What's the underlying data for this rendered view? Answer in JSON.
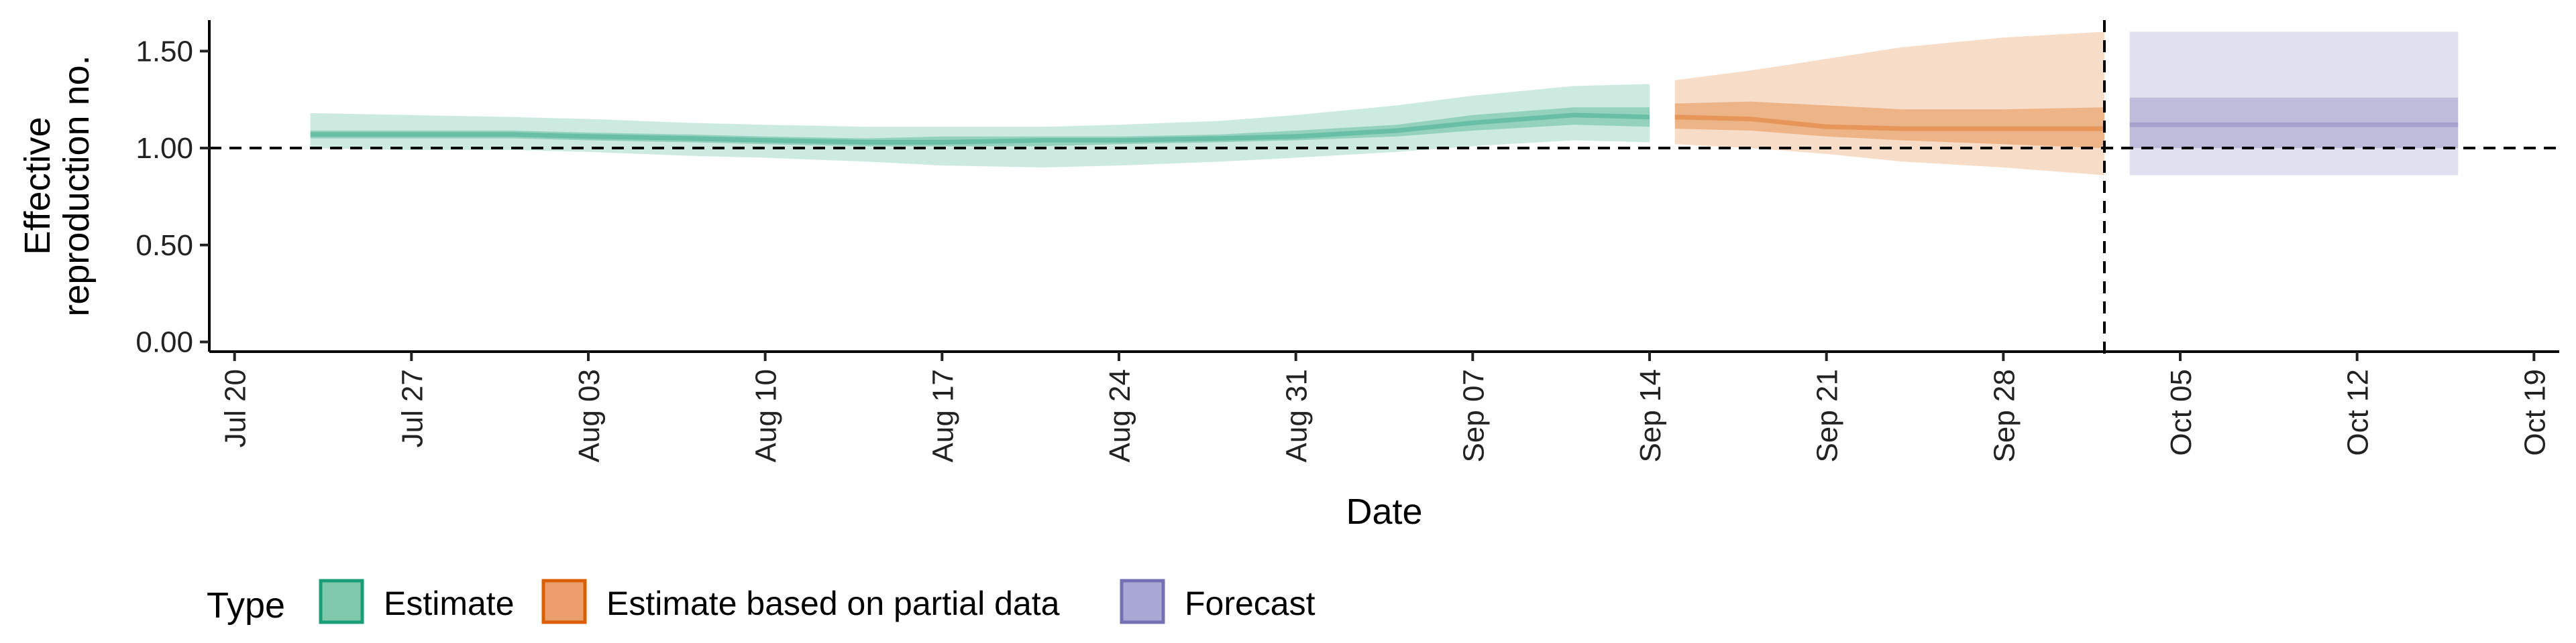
{
  "chart_data": {
    "type": "area",
    "title": "",
    "xlabel": "Date",
    "ylabel_lines": [
      "Effective",
      "reproduction no."
    ],
    "x_start": "2020-07-19",
    "xlim": [
      "2020-07-19",
      "2020-10-20"
    ],
    "ylim": [
      -0.05,
      1.66
    ],
    "x_ticks": [
      {
        "date": "2020-07-20",
        "label": "Jul 20"
      },
      {
        "date": "2020-07-27",
        "label": "Jul 27"
      },
      {
        "date": "2020-08-03",
        "label": "Aug 03"
      },
      {
        "date": "2020-08-10",
        "label": "Aug 10"
      },
      {
        "date": "2020-08-17",
        "label": "Aug 17"
      },
      {
        "date": "2020-08-24",
        "label": "Aug 24"
      },
      {
        "date": "2020-08-31",
        "label": "Aug 31"
      },
      {
        "date": "2020-09-07",
        "label": "Sep 07"
      },
      {
        "date": "2020-09-14",
        "label": "Sep 14"
      },
      {
        "date": "2020-09-21",
        "label": "Sep 21"
      },
      {
        "date": "2020-09-28",
        "label": "Sep 28"
      },
      {
        "date": "2020-10-05",
        "label": "Oct 05"
      },
      {
        "date": "2020-10-12",
        "label": "Oct 12"
      },
      {
        "date": "2020-10-19",
        "label": "Oct 19"
      }
    ],
    "y_ticks": [
      {
        "value": 0.0,
        "label": "0.00"
      },
      {
        "value": 0.5,
        "label": "0.50"
      },
      {
        "value": 1.0,
        "label": "1.00"
      },
      {
        "value": 1.5,
        "label": "1.50"
      }
    ],
    "reference_lines": {
      "horizontal_y": 1.0,
      "vertical_date": "2020-10-02"
    },
    "legend": {
      "title": "Type",
      "position": "bottom-left",
      "items": [
        {
          "label": "Estimate",
          "fill": "#7ec8ac",
          "stroke": "#1b9e77"
        },
        {
          "label": "Estimate based on partial data",
          "fill": "#eba06b",
          "stroke": "#d95f02"
        },
        {
          "label": "Forecast",
          "fill": "#aaa8d6",
          "stroke": "#7570b3"
        }
      ]
    },
    "series": [
      {
        "name": "Estimate",
        "color": "#1b9e77",
        "points": [
          {
            "date": "2020-07-23",
            "lower90": 1.0,
            "upper90": 1.18,
            "lower50": 1.05,
            "upper50": 1.09,
            "median": 1.07
          },
          {
            "date": "2020-07-27",
            "lower90": 0.99,
            "upper90": 1.17,
            "lower50": 1.05,
            "upper50": 1.09,
            "median": 1.07
          },
          {
            "date": "2020-07-31",
            "lower90": 0.99,
            "upper90": 1.16,
            "lower50": 1.05,
            "upper50": 1.09,
            "median": 1.07
          },
          {
            "date": "2020-08-03",
            "lower90": 0.98,
            "upper90": 1.15,
            "lower50": 1.04,
            "upper50": 1.08,
            "median": 1.06
          },
          {
            "date": "2020-08-07",
            "lower90": 0.96,
            "upper90": 1.13,
            "lower50": 1.03,
            "upper50": 1.07,
            "median": 1.05
          },
          {
            "date": "2020-08-10",
            "lower90": 0.95,
            "upper90": 1.12,
            "lower50": 1.02,
            "upper50": 1.06,
            "median": 1.04
          },
          {
            "date": "2020-08-14",
            "lower90": 0.93,
            "upper90": 1.11,
            "lower50": 1.01,
            "upper50": 1.05,
            "median": 1.03
          },
          {
            "date": "2020-08-17",
            "lower90": 0.91,
            "upper90": 1.11,
            "lower50": 1.01,
            "upper50": 1.06,
            "median": 1.03
          },
          {
            "date": "2020-08-21",
            "lower90": 0.9,
            "upper90": 1.11,
            "lower50": 1.01,
            "upper50": 1.06,
            "median": 1.04
          },
          {
            "date": "2020-08-24",
            "lower90": 0.91,
            "upper90": 1.12,
            "lower50": 1.02,
            "upper50": 1.06,
            "median": 1.04
          },
          {
            "date": "2020-08-28",
            "lower90": 0.93,
            "upper90": 1.14,
            "lower50": 1.03,
            "upper50": 1.07,
            "median": 1.05
          },
          {
            "date": "2020-08-31",
            "lower90": 0.95,
            "upper90": 1.17,
            "lower50": 1.04,
            "upper50": 1.09,
            "median": 1.06
          },
          {
            "date": "2020-09-04",
            "lower90": 0.98,
            "upper90": 1.22,
            "lower50": 1.06,
            "upper50": 1.12,
            "median": 1.09
          },
          {
            "date": "2020-09-07",
            "lower90": 1.01,
            "upper90": 1.27,
            "lower50": 1.09,
            "upper50": 1.17,
            "median": 1.13
          },
          {
            "date": "2020-09-11",
            "lower90": 1.04,
            "upper90": 1.32,
            "lower50": 1.12,
            "upper50": 1.21,
            "median": 1.17
          },
          {
            "date": "2020-09-14",
            "lower90": 1.03,
            "upper90": 1.33,
            "lower50": 1.11,
            "upper50": 1.21,
            "median": 1.16
          }
        ]
      },
      {
        "name": "Estimate based on partial data",
        "color": "#d95f02",
        "points": [
          {
            "date": "2020-09-15",
            "lower90": 1.02,
            "upper90": 1.35,
            "lower50": 1.1,
            "upper50": 1.23,
            "median": 1.16
          },
          {
            "date": "2020-09-18",
            "lower90": 1.0,
            "upper90": 1.4,
            "lower50": 1.09,
            "upper50": 1.24,
            "median": 1.15
          },
          {
            "date": "2020-09-21",
            "lower90": 0.97,
            "upper90": 1.46,
            "lower50": 1.06,
            "upper50": 1.22,
            "median": 1.11
          },
          {
            "date": "2020-09-24",
            "lower90": 0.93,
            "upper90": 1.52,
            "lower50": 1.04,
            "upper50": 1.2,
            "median": 1.1
          },
          {
            "date": "2020-09-28",
            "lower90": 0.9,
            "upper90": 1.57,
            "lower50": 1.02,
            "upper50": 1.2,
            "median": 1.1
          },
          {
            "date": "2020-10-02",
            "lower90": 0.86,
            "upper90": 1.6,
            "lower50": 1.0,
            "upper50": 1.21,
            "median": 1.1
          }
        ]
      },
      {
        "name": "Forecast",
        "color": "#7570b3",
        "points": [
          {
            "date": "2020-10-03",
            "lower90": 0.86,
            "upper90": 1.6,
            "lower50": 1.0,
            "upper50": 1.26,
            "median": 1.12
          },
          {
            "date": "2020-10-16",
            "lower90": 0.86,
            "upper90": 1.6,
            "lower50": 1.0,
            "upper50": 1.26,
            "median": 1.12
          }
        ]
      }
    ]
  }
}
